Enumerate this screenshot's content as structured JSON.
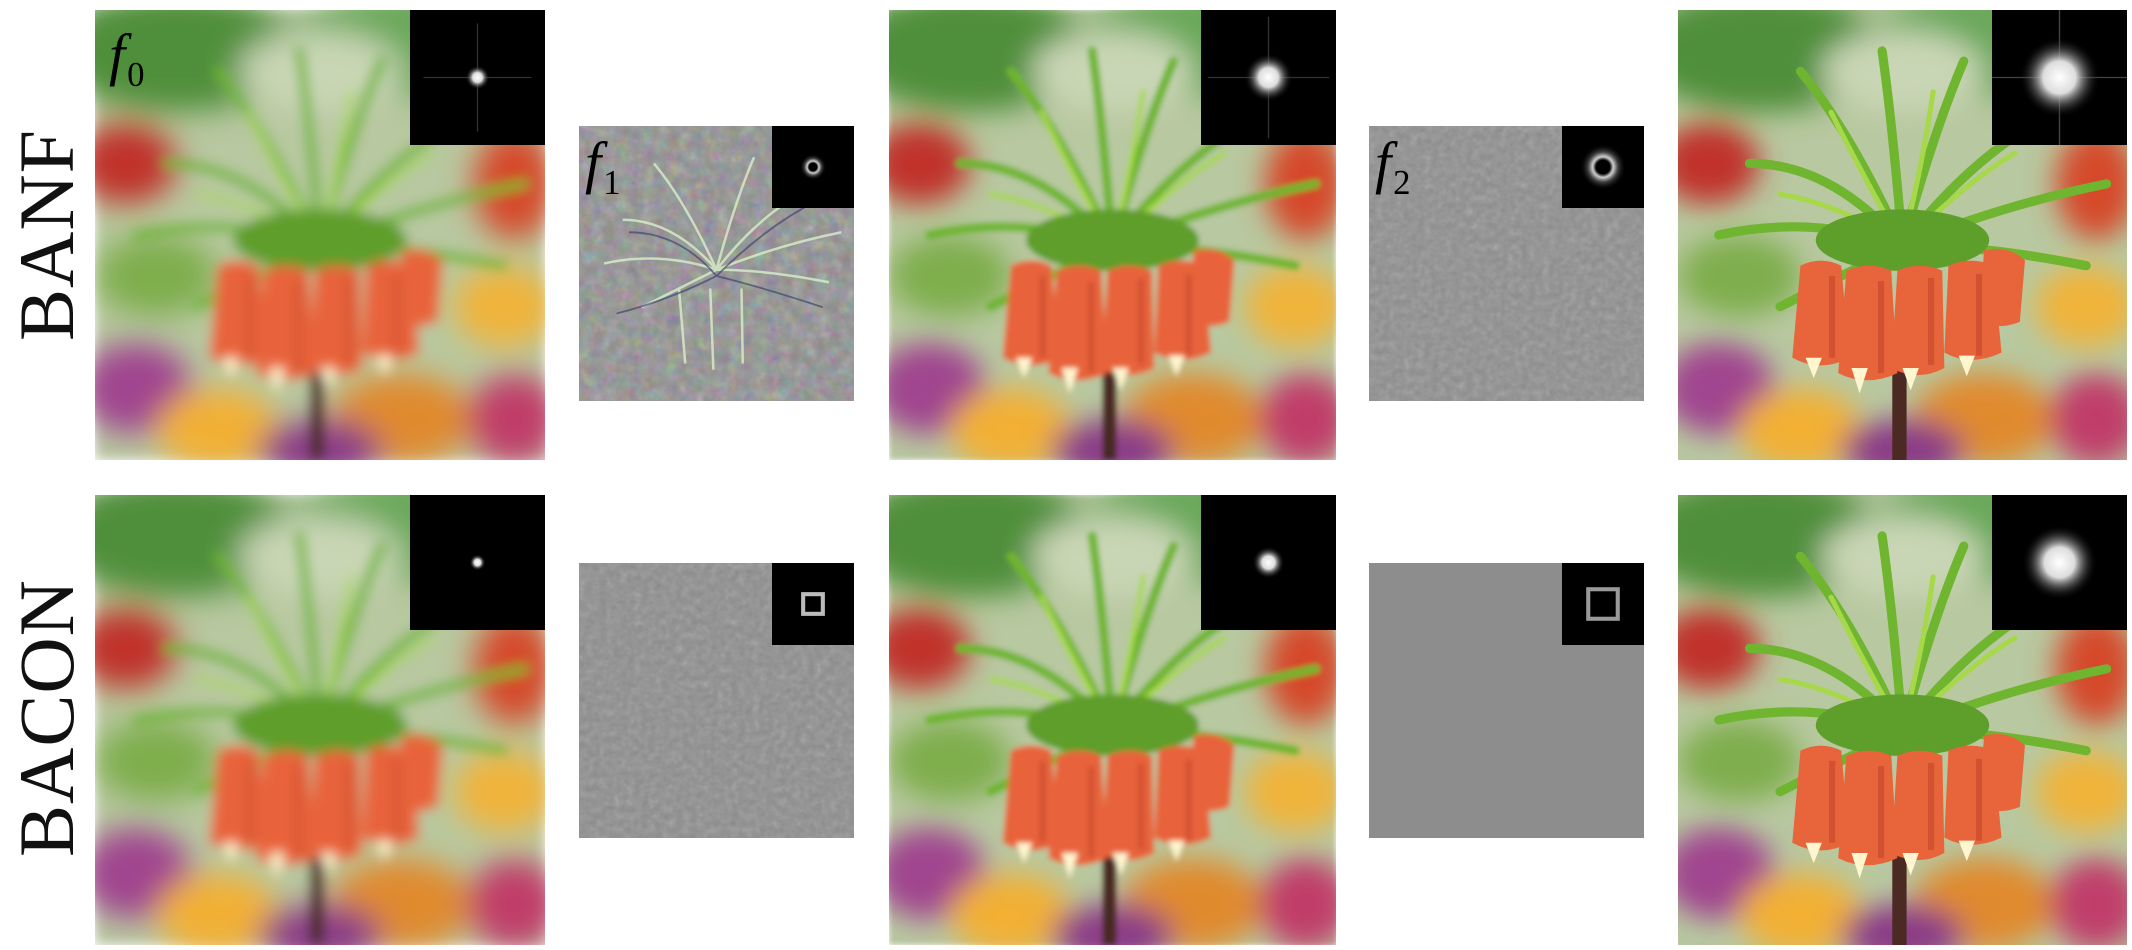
{
  "rows": [
    {
      "label": "BANF"
    },
    {
      "label": "BACON"
    }
  ],
  "panel_labels": {
    "f0": {
      "base": "f",
      "sub": "0"
    },
    "f1": {
      "base": "f",
      "sub": "1"
    },
    "f2": {
      "base": "f",
      "sub": "2"
    }
  },
  "colors": {
    "background": "#ffffff",
    "inset_bg": "#000000",
    "residual_gray": "#8c8c8c",
    "flower_orange": "#e8643a",
    "leaf_green": "#7fbf3a"
  }
}
